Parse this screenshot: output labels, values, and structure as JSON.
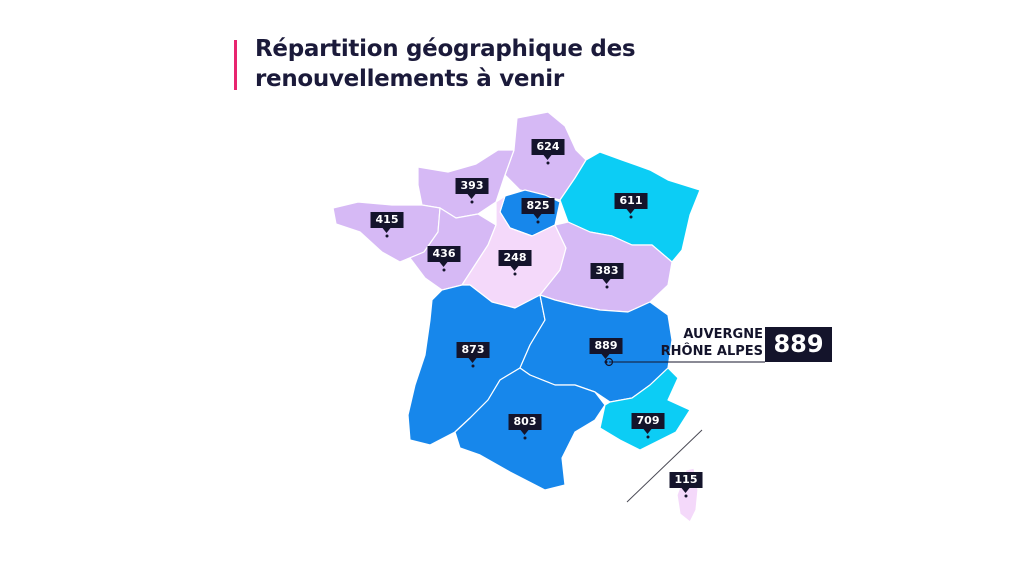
{
  "title": {
    "line1": "Répartition géographique des",
    "line2": "renouvellements à venir"
  },
  "colors": {
    "accent": "#e8256f",
    "label_bg": "#14142b",
    "high": "#1787eb",
    "mid": "#0ccdf5",
    "low": "#d6b9f5",
    "lowest": "#f4d9fa"
  },
  "regions": [
    {
      "key": "hauts-de-france",
      "value": "624",
      "tier": "low"
    },
    {
      "key": "normandie",
      "value": "393",
      "tier": "low"
    },
    {
      "key": "ile-de-france",
      "value": "825",
      "tier": "high"
    },
    {
      "key": "grand-est",
      "value": "611",
      "tier": "mid"
    },
    {
      "key": "bretagne",
      "value": "415",
      "tier": "low"
    },
    {
      "key": "pays-de-la-loire",
      "value": "436",
      "tier": "low"
    },
    {
      "key": "centre-val-de-loire",
      "value": "248",
      "tier": "lowest"
    },
    {
      "key": "bourgogne-franche-comte",
      "value": "383",
      "tier": "low"
    },
    {
      "key": "nouvelle-aquitaine",
      "value": "873",
      "tier": "high"
    },
    {
      "key": "auvergne-rhone-alpes",
      "value": "889",
      "tier": "high"
    },
    {
      "key": "occitanie",
      "value": "803",
      "tier": "high"
    },
    {
      "key": "provence-alpes-cote-d-azur",
      "value": "709",
      "tier": "mid"
    },
    {
      "key": "corse",
      "value": "115",
      "tier": "lowest"
    }
  ],
  "callout": {
    "name_line1": "AUVERGNE",
    "name_line2": "RHÔNE ALPES",
    "value": "889"
  }
}
